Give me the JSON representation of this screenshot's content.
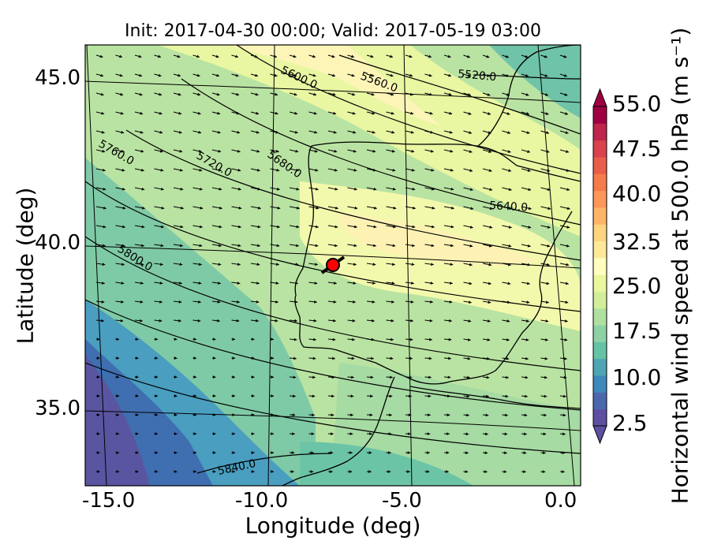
{
  "title": "Init: 2017-04-30 00:00; Valid: 2017-05-19 03:00",
  "xlabel": "Longitude (deg)",
  "ylabel": "Latitude (deg)",
  "x_ticks": [
    "-15.0",
    "-10.0",
    "-5.0",
    "0.0"
  ],
  "y_ticks": [
    "45.0",
    "40.0",
    "35.0"
  ],
  "colorbar": {
    "label": "Horizontal wind speed at 500.0 hPa (m s⁻¹)",
    "ticks": [
      "55.0",
      "47.5",
      "40.0",
      "32.5",
      "25.0",
      "17.5",
      "10.0",
      "2.5"
    ],
    "colors": [
      "#5e4fa2",
      "#4b68ae",
      "#3f88bc",
      "#4fa4b3",
      "#66c2a5",
      "#8ed1a4",
      "#b0dfa2",
      "#d3ee9b",
      "#eaf79e",
      "#fffebe",
      "#fee999",
      "#fed480",
      "#fdb466",
      "#fb9759",
      "#f67b4a",
      "#e85e4a",
      "#d8434e",
      "#be254a",
      "#9e0142"
    ],
    "extend": "both"
  },
  "contour_labels": [
    "5520.0",
    "5560.0",
    "5600.0",
    "5640.0",
    "5680.0",
    "5720.0",
    "5760.0",
    "5800.0",
    "5840.0"
  ],
  "marker": {
    "lon": -7.6,
    "lat": 39.3,
    "color": "#ff0000"
  }
}
